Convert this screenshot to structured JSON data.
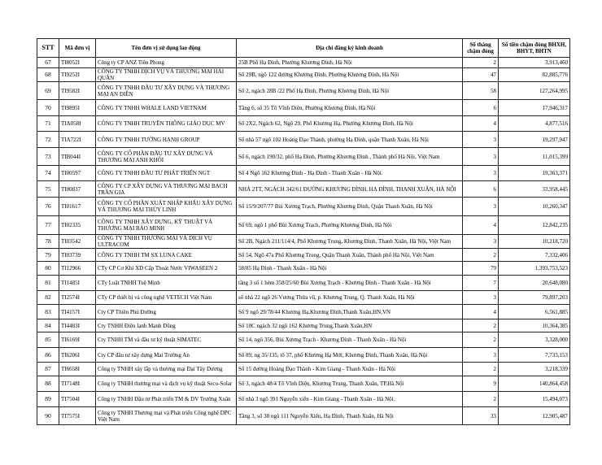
{
  "headers": [
    "STT",
    "Mã đơn vị",
    "Tên đơn vị sử dụng lao động",
    "Địa chỉ đăng ký kinh doanh",
    "Số tháng chậm đóng",
    "Số tiền chậm đóng BHXH, BHYT, BHTN"
  ],
  "rows": [
    [
      "67",
      "TI8052I",
      "Công ty CP ANZ Tiên Phong",
      "25B Phố Hạ Đình, Phường Khương Đình, Hà Nội",
      "2",
      "3,913,460"
    ],
    [
      "68",
      "TI9252I",
      "CÔNG TY TNHH DỊCH VỤ VÀ THƯƠNG MẠI HẢI QUÂN",
      "Số 29B, ngõ 122 đường Khương Đình, Phường Khương Đình, Hà Nội",
      "47",
      "82,885,776"
    ],
    [
      "69",
      "TI9582I",
      "CÔNG TY TNHH ĐẦU TƯ XÂY DỰNG VÀ THƯƠNG MẠI AN ĐIỀN",
      "Số 2, ngách 28B /22 Phố Hạ Đình, Phường Khương Đình, Hà Nội",
      "58",
      "127,264,995"
    ],
    [
      "70",
      "TI9895I",
      "CÔNG TY TNHH WHALE LAND VIETNAM",
      "Tầng 6, số 35 Tô Vĩnh Diện, Phường Khương Đình, Hà Nội",
      "6",
      "17,946,317"
    ],
    [
      "71",
      "TIA058I",
      "CÔNG TY TNHH TRUYỀN THÔNG GIÁO DỤC MV",
      "Số 2X2, Ngách 62, Ngõ 29, Phố Khương Hạ, Phường Khương Đình, Hà Nội",
      "4",
      "4,877,516"
    ],
    [
      "72",
      "TIA722I",
      "CÔNG TY TNHH TƯỜNG HẠNH GROUP",
      "Số nhà 57 ngõ 102 Hoàng Đạo Thành, phường Hạ Đình, quận Thanh Xuân, Hà Nội",
      "3",
      "19,297,947"
    ],
    [
      "73",
      "TIB044I",
      "CÔNG TY CỔ PHẦN ĐẦU TƯ XÂY DỰNG VÀ THƯƠNG MẠI ANH KHÔI",
      "Số 6, ngách 190/32, phố Hạ Đình, Phường Khương Đình , Thành phố Hà Nội, Việt Nam",
      "3",
      "11,015,399"
    ],
    [
      "74",
      "TI00597",
      "CÔNG TY TNHH ĐẦU TƯ PHÁT TRIỂN NGT",
      "Số 4 Ngõ 162 Khương Đình - Hạ Đình - Thanh Xuân - Hà Nội.",
      "3",
      "19,363,371"
    ],
    [
      "75",
      "TI00837",
      "CÔNG TY CP XÂY DỰNG VÀ THƯƠNG MẠI BẠCH TRẦN GIA",
      "NHÀ 2TT, NGÁCH 342/61 ĐƯỜNG KHƯƠNG ĐÌNH, HẠ ĐÌNH, THANH XUÂN, HÀ NỘI",
      "6",
      "33,958,445"
    ],
    [
      "76",
      "TI01617",
      "CÔNG TY CỔ PHẦN XUẤT NHẬP KHẨU XÂY DỰNG VÀ THƯƠNG MẠI THÙY LINH",
      "Số 15/9/207/77 Bùi Xương Trạch, Phường Khương Đình, Quận Thanh Xuân, Hà Nội",
      "3",
      "10,260,347"
    ],
    [
      "77",
      "TI02335",
      "CÔNG TY TNHH XÂY DỰNG, KỸ THUẬT VÀ THƯƠNG MẠI BẢO MINH",
      "Số 69, ngõ 1 phố Bùi Xương Trạch, Phường Khương Đình, Hà Nội",
      "4",
      "12,842,235"
    ],
    [
      "78",
      "TI03542",
      "CÔNG TY TNHH THƯƠNG MẠI VÀ DỊCH VỤ ULTRACOM",
      "Số 2B, Ngách 211/114/4, Phố Khương Trung, Khương Đình, Thanh Xuân, Hà Nội, Việt Nam",
      "3",
      "10,218,720"
    ],
    [
      "79",
      "TI03739",
      "CÔNG TY TNHH TM SX LUNA CAKE",
      "Số 54, Ngõ 47a Phố Khương Trung, Quận Thanh Xuân, Thành phố Hà Nội, Việt Nam",
      "2",
      "7,332,406"
    ],
    [
      "80",
      "TI12966",
      "CTy CP Cơ Khí XD Cấp Thoát Nước VIWASEEN 2",
      "58/85 Hạ Đình - Thanh Xuân - Hà Nội",
      "79",
      "1,393,753,523"
    ],
    [
      "81",
      "TI1485I",
      "CTy Luật TNHH Tuệ Minh",
      "tầng 3 số 1 hẻm 358/25/60 Bùi Xương Trạch - Khương Đình - Thanh Xuân - Hà Nội",
      "7",
      "20,648,080"
    ],
    [
      "82",
      "TI2574I",
      "CTy CP thiết bị và công nghệ VETECH Việt Nam",
      "số nhà 22 ngõ 26 Vương Thừa vũ, p. Khương Trung, Q. Thanh Xuân, Hà Nội",
      "3",
      "79,897,203"
    ],
    [
      "83",
      "TI4157I",
      "Cty CP Thiên Phú Đường",
      "Số 9 ngõ 29/78/44 Khương Hạ,Khương Đình,Thanh Xuân,HN,VN",
      "4",
      "6,561,885"
    ],
    [
      "84",
      "TI4483I",
      "Cty TNHH Điện lạnh Mạnh Dũng",
      "Số 10C ngách 32 ngõ 162 Khương Trung,Thanh Xuân,HN",
      "2",
      "10,364,385"
    ],
    [
      "85",
      "TI6169I",
      "Cty TNHH TM và đầu tư kỹ thuật SIMATEC",
      "Số 14, ngõ 356, Bùi Xương Trạch - Khương Đình - Thanh Xuân - Hà Nội",
      "2",
      "3,328,000"
    ],
    [
      "86",
      "TI6206I",
      "Cty CP đầu tư xây dựng Mai Trường An",
      "Số 89, ng 35/135, tổ 37, phố Khương Hạ Mới,  Khương Đình, Thanh Xuân, Hà Nội",
      "3",
      "7,733,153"
    ],
    [
      "87",
      "TI6658I",
      "Công ty TNHH xây lắp và thương mại Đại Tây Dương",
      "Số 15 đường Hoàng Đạo Thành - Kim Giang - Thanh Xuân - Hà Nội",
      "2",
      "3,218,339"
    ],
    [
      "88",
      "TI7148I",
      "Công ty TNHH thương mại và dịch vụ kỹ thuật Seco-Solar",
      "Số 3, ngách 48/4 Tô Vĩnh Diện, Khương Trung, Thanh Xuân, TP.Hà Nội",
      "9",
      "140,864,458"
    ],
    [
      "89",
      "TI7504I",
      "Công ty TNHH Đầu tư Phát triển TM & DV Trường Xuân",
      "Số nhà 3 ngõ 391 Nguyễn xiển - Kim Giang - Thanh Xuân - Hà Nội.",
      "2",
      "15,494,073"
    ],
    [
      "90",
      "TI7575I",
      "Công ty TNHH Thương mại và Phát triển Công nghệ DPC Việt Nam",
      "Tầng 3, số 38 ngõ 111 Nguyễn Xiển, Hạ Đình, Thanh Xuân, Hà Nội",
      "33",
      "12,905,487"
    ]
  ]
}
